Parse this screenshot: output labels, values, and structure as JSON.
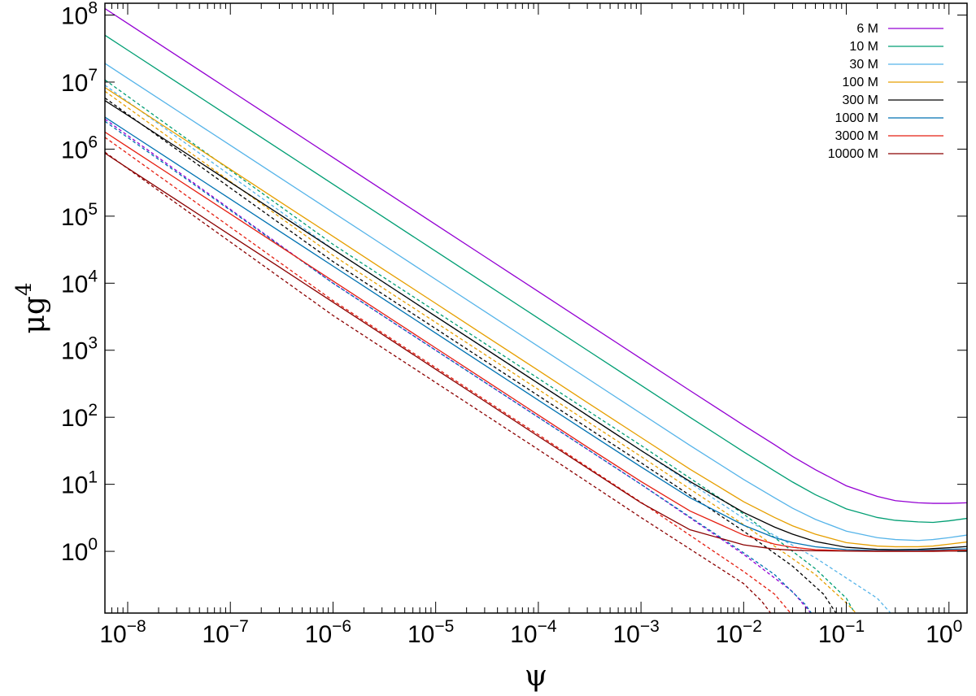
{
  "chart_data": {
    "type": "line",
    "xlabel": "ψ",
    "ylabel_base": "μg",
    "ylabel_exp": "4",
    "x_scale": "log",
    "y_scale": "log",
    "xlim": [
      6e-09,
      1.5
    ],
    "ylim": [
      0.12,
      150000000
    ],
    "x_ticks": [
      {
        "base": "10",
        "exp": "−8",
        "value": 1e-08
      },
      {
        "base": "10",
        "exp": "−7",
        "value": 1e-07
      },
      {
        "base": "10",
        "exp": "−6",
        "value": 1e-06
      },
      {
        "base": "10",
        "exp": "−5",
        "value": 1e-05
      },
      {
        "base": "10",
        "exp": "−4",
        "value": 0.0001
      },
      {
        "base": "10",
        "exp": "−3",
        "value": 0.001
      },
      {
        "base": "10",
        "exp": "−2",
        "value": 0.01
      },
      {
        "base": "10",
        "exp": "−1",
        "value": 0.1
      },
      {
        "base": "10",
        "exp": "0",
        "value": 1
      }
    ],
    "y_ticks": [
      {
        "base": "10",
        "exp": "0",
        "value": 1
      },
      {
        "base": "10",
        "exp": "1",
        "value": 10
      },
      {
        "base": "10",
        "exp": "2",
        "value": 100
      },
      {
        "base": "10",
        "exp": "3",
        "value": 1000
      },
      {
        "base": "10",
        "exp": "4",
        "value": 10000
      },
      {
        "base": "10",
        "exp": "5",
        "value": 100000
      },
      {
        "base": "10",
        "exp": "6",
        "value": 1000000
      },
      {
        "base": "10",
        "exp": "7",
        "value": 10000000
      },
      {
        "base": "10",
        "exp": "8",
        "value": 100000000
      }
    ],
    "grid": false,
    "legend_position": "top-right",
    "x": [
      6e-09,
      1e-08,
      3e-08,
      1e-07,
      3e-07,
      1e-06,
      3e-06,
      1e-05,
      3e-05,
      0.0001,
      0.0003,
      0.001,
      0.003,
      0.01,
      0.02,
      0.03,
      0.05,
      0.1,
      0.2,
      0.3,
      0.5,
      0.7,
      1,
      1.5
    ],
    "series": [
      {
        "name": "6 M",
        "color": "#9400d3",
        "style": "solid",
        "values": [
          125000000,
          75000000,
          25000000,
          7500000,
          2500000,
          750000,
          250000,
          75000,
          25000,
          7500,
          2500,
          750,
          250,
          76,
          39,
          26,
          16.5,
          9.5,
          6.6,
          5.7,
          5.3,
          5.2,
          5.2,
          5.3
        ]
      },
      {
        "name": "10 M",
        "color": "#009e73",
        "style": "solid",
        "values": [
          50000000,
          30000000,
          10000000,
          3000000,
          1000000,
          300000,
          100000,
          30000,
          10000,
          3000,
          1000,
          300,
          100,
          30.5,
          15.8,
          10.8,
          7,
          4.3,
          3.2,
          2.9,
          2.75,
          2.7,
          2.85,
          3.1
        ]
      },
      {
        "name": "30 M",
        "color": "#56b4e9",
        "style": "solid",
        "values": [
          19000000,
          11400000,
          3800000,
          1140000,
          380000,
          114000,
          38000,
          11400,
          3800,
          1140,
          380,
          114,
          38,
          11.8,
          6.3,
          4.4,
          3,
          2,
          1.6,
          1.5,
          1.45,
          1.5,
          1.6,
          1.75
        ]
      },
      {
        "name": "100 M",
        "color": "#e69f00",
        "style": "solid",
        "values": [
          8300000,
          5000000,
          1660000,
          500000,
          166000,
          50000,
          16600,
          5000,
          1660,
          500,
          166,
          50,
          16.8,
          5.5,
          3.2,
          2.4,
          1.8,
          1.35,
          1.2,
          1.17,
          1.17,
          1.2,
          1.28,
          1.38
        ]
      },
      {
        "name": "300 M",
        "color": "#000000",
        "style": "solid",
        "values": [
          5300000,
          3200000,
          1070000,
          320000,
          107000,
          32000,
          10700,
          3200,
          1070,
          320,
          107,
          32,
          11,
          3.8,
          2.3,
          1.8,
          1.4,
          1.15,
          1.07,
          1.06,
          1.07,
          1.1,
          1.13,
          1.18
        ]
      },
      {
        "name": "1000 M",
        "color": "#0072b2",
        "style": "solid",
        "values": [
          3000000,
          1800000,
          600000,
          180000,
          60000,
          18000,
          6000,
          1800,
          600,
          180,
          60,
          18.2,
          6.3,
          2.45,
          1.6,
          1.35,
          1.17,
          1.06,
          1.03,
          1.03,
          1.04,
          1.05,
          1.07,
          1.09
        ]
      },
      {
        "name": "3000 M",
        "color": "#e51e10",
        "style": "solid",
        "values": [
          1800000,
          1080000,
          360000,
          108000,
          36000,
          10800,
          3600,
          1080,
          360,
          108,
          36,
          11,
          4,
          1.75,
          1.28,
          1.15,
          1.06,
          1.02,
          1.01,
          1.01,
          1.01,
          1.02,
          1.03,
          1.04
        ]
      },
      {
        "name": "10000 M",
        "color": "#8b0000",
        "style": "solid",
        "values": [
          870000,
          520000,
          174000,
          52000,
          17400,
          5200,
          1740,
          520,
          174,
          52,
          17.5,
          5.3,
          2.1,
          1.25,
          1.08,
          1.04,
          1.02,
          1.01,
          1.0,
          1.0,
          1.0,
          1.0,
          1.01,
          1.01
        ]
      }
    ],
    "dashed_series": [
      {
        "color": "#9400d3",
        "x": [
          6e-09,
          1e-06,
          0.0001,
          0.001,
          0.01,
          0.03,
          0.05,
          0.08
        ],
        "values": [
          2800000,
          10000,
          100,
          10,
          0.9,
          0.25,
          0.1,
          0.03
        ]
      },
      {
        "color": "#009e73",
        "x": [
          6e-09,
          1e-06,
          0.0001,
          0.001,
          0.01,
          0.05,
          0.1,
          0.14
        ],
        "values": [
          10800000,
          38000,
          380,
          38,
          3.6,
          0.55,
          0.2,
          0.08
        ]
      },
      {
        "color": "#56b4e9",
        "x": [
          6e-09,
          1e-06,
          0.0001,
          0.001,
          0.01,
          0.05,
          0.2,
          0.3
        ],
        "values": [
          9000000,
          32000,
          320,
          32,
          3.1,
          0.8,
          0.2,
          0.1
        ]
      },
      {
        "color": "#e69f00",
        "x": [
          6e-09,
          1e-06,
          0.0001,
          0.001,
          0.01,
          0.05,
          0.1,
          0.16
        ],
        "values": [
          7300000,
          26000,
          260,
          26,
          2.5,
          0.45,
          0.17,
          0.08
        ]
      },
      {
        "color": "#000000",
        "x": [
          6e-09,
          1e-06,
          0.0001,
          0.001,
          0.01,
          0.03,
          0.06,
          0.1
        ],
        "values": [
          5800000,
          21000,
          210,
          21,
          2,
          0.6,
          0.23,
          0.07
        ]
      },
      {
        "color": "#0072b2",
        "x": [
          6e-09,
          1e-06,
          0.0001,
          0.001,
          0.01,
          0.02,
          0.04,
          0.055
        ],
        "values": [
          2600000,
          10000,
          100,
          10,
          0.95,
          0.45,
          0.16,
          0.08
        ]
      },
      {
        "color": "#e51e10",
        "x": [
          6e-09,
          1e-06,
          0.0001,
          0.001,
          0.01,
          0.02,
          0.03,
          0.036
        ],
        "values": [
          1500000,
          5500,
          55,
          5.4,
          0.5,
          0.23,
          0.11,
          0.08
        ]
      },
      {
        "color": "#8b0000",
        "x": [
          6e-09,
          1e-06,
          0.0001,
          0.001,
          0.01,
          0.015,
          0.02,
          0.024
        ],
        "values": [
          900000,
          3300,
          33,
          3.2,
          0.33,
          0.18,
          0.1,
          0.07
        ]
      }
    ]
  }
}
